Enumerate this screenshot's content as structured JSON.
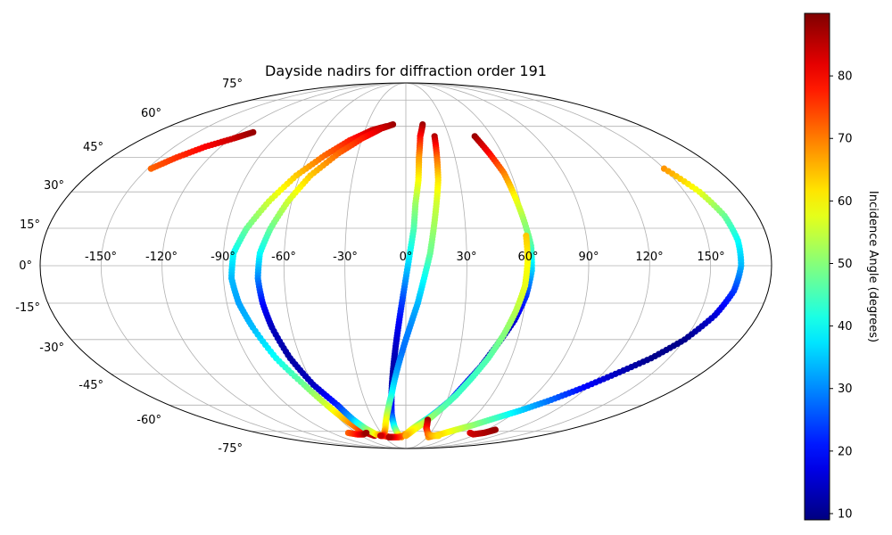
{
  "chart_data": {
    "type": "scatter",
    "projection": "mollweide",
    "title": "Dayside nadirs for diffraction order 191",
    "x_tick_labels": [
      "-150°",
      "-120°",
      "-90°",
      "-60°",
      "-30°",
      "0°",
      "30°",
      "60°",
      "90°",
      "120°",
      "150°"
    ],
    "y_tick_labels": [
      "75°",
      "60°",
      "45°",
      "30°",
      "15°",
      "0°",
      "-15°",
      "-30°",
      "-45°",
      "-60°",
      "-75°"
    ],
    "xlim": [
      -180,
      180
    ],
    "ylim": [
      -90,
      90
    ],
    "grid": true,
    "colorbar": {
      "label": "Incidence Angle (degrees)",
      "colormap": "jet",
      "range": [
        9,
        90
      ],
      "tick_labels": [
        "10",
        "20",
        "30",
        "40",
        "50",
        "60",
        "70",
        "80"
      ]
    },
    "series": [
      {
        "points": [
          [
            -148,
            40,
            72
          ],
          [
            -140,
            45,
            76
          ],
          [
            -130,
            50,
            80
          ],
          [
            -118,
            54,
            84
          ],
          [
            -110,
            57,
            88
          ]
        ]
      },
      {
        "points": [
          [
            -15,
            60,
            88
          ],
          [
            -25,
            58,
            84
          ],
          [
            -38,
            53,
            78
          ],
          [
            -50,
            46,
            72
          ],
          [
            -62,
            37,
            64
          ],
          [
            -72,
            26,
            56
          ],
          [
            -80,
            15,
            48
          ],
          [
            -85,
            5,
            40
          ],
          [
            -86,
            -5,
            34
          ],
          [
            -84,
            -15,
            32
          ],
          [
            -80,
            -25,
            34
          ],
          [
            -74,
            -38,
            40
          ],
          [
            -66,
            -50,
            48
          ],
          [
            -60,
            -60,
            56
          ],
          [
            -56,
            -67,
            64
          ],
          [
            -52,
            -73,
            72
          ],
          [
            -48,
            -76,
            80
          ],
          [
            -42,
            -78,
            86
          ]
        ]
      },
      {
        "points": [
          [
            -10,
            61,
            88
          ],
          [
            -18,
            59,
            84
          ],
          [
            -30,
            54,
            78
          ],
          [
            -42,
            47,
            72
          ],
          [
            -54,
            37,
            64
          ],
          [
            -62,
            26,
            56
          ],
          [
            -68,
            15,
            48
          ],
          [
            -72,
            5,
            40
          ],
          [
            -73,
            -5,
            30
          ],
          [
            -72,
            -15,
            20
          ],
          [
            -70,
            -25,
            14
          ],
          [
            -66,
            -38,
            12
          ],
          [
            -60,
            -50,
            14
          ],
          [
            -52,
            -60,
            22
          ],
          [
            -48,
            -68,
            34
          ],
          [
            -44,
            -73,
            48
          ],
          [
            -38,
            -77,
            60
          ],
          [
            -30,
            -78,
            72
          ],
          [
            -22,
            -79,
            82
          ]
        ]
      },
      {
        "points": [
          [
            13,
            61,
            88
          ],
          [
            10,
            55,
            80
          ],
          [
            8,
            45,
            68
          ],
          [
            7,
            35,
            60
          ],
          [
            5,
            25,
            52
          ],
          [
            4,
            15,
            46
          ],
          [
            2,
            5,
            40
          ],
          [
            0,
            -5,
            32
          ],
          [
            -2,
            -15,
            24
          ],
          [
            -4,
            -25,
            18
          ],
          [
            -6,
            -35,
            14
          ],
          [
            -8,
            -45,
            12
          ],
          [
            -10,
            -55,
            14
          ],
          [
            -12,
            -65,
            24
          ],
          [
            -12,
            -72,
            40
          ],
          [
            -10,
            -77,
            56
          ],
          [
            -6,
            -79,
            68
          ]
        ]
      },
      {
        "points": [
          [
            20,
            55,
            86
          ],
          [
            19,
            45,
            72
          ],
          [
            18,
            35,
            62
          ],
          [
            16,
            25,
            56
          ],
          [
            14,
            15,
            52
          ],
          [
            12,
            5,
            48
          ],
          [
            9,
            -5,
            40
          ],
          [
            6,
            -15,
            34
          ],
          [
            2,
            -25,
            30
          ],
          [
            -2,
            -35,
            28
          ],
          [
            -6,
            -45,
            32
          ],
          [
            -10,
            -55,
            40
          ],
          [
            -14,
            -62,
            50
          ],
          [
            -18,
            -68,
            58
          ],
          [
            -22,
            -73,
            62
          ],
          [
            -26,
            -76,
            68
          ],
          [
            -30,
            -78,
            76
          ],
          [
            -34,
            -78,
            84
          ]
        ]
      },
      {
        "points": [
          [
            48,
            55,
            88
          ],
          [
            52,
            47,
            80
          ],
          [
            56,
            38,
            70
          ],
          [
            58,
            28,
            60
          ],
          [
            60,
            18,
            52
          ],
          [
            62,
            8,
            46
          ],
          [
            62,
            -2,
            36
          ],
          [
            60,
            -12,
            24
          ],
          [
            56,
            -22,
            16
          ],
          [
            50,
            -32,
            12
          ],
          [
            44,
            -42,
            14
          ],
          [
            38,
            -50,
            18
          ],
          [
            32,
            -58,
            24
          ],
          [
            26,
            -63,
            32
          ],
          [
            20,
            -67,
            40
          ],
          [
            14,
            -70,
            48
          ],
          [
            8,
            -73,
            56
          ],
          [
            2,
            -76,
            62
          ],
          [
            -4,
            -78,
            68
          ],
          [
            -10,
            -79,
            74
          ],
          [
            -18,
            -79,
            80
          ],
          [
            -24,
            -79,
            86
          ]
        ]
      },
      {
        "points": [
          [
            60,
            12,
            64
          ],
          [
            60,
            2,
            60
          ],
          [
            59,
            -8,
            58
          ],
          [
            56,
            -18,
            54
          ],
          [
            52,
            -28,
            50
          ],
          [
            47,
            -38,
            46
          ],
          [
            41,
            -47,
            44
          ],
          [
            35,
            -55,
            44
          ],
          [
            29,
            -61,
            46
          ],
          [
            23,
            -66,
            50
          ],
          [
            17,
            -70,
            54
          ],
          [
            11,
            -73,
            58
          ],
          [
            5,
            -76,
            62
          ],
          [
            0,
            -78,
            66
          ]
        ]
      },
      {
        "points": [
          [
            150,
            40,
            68
          ],
          [
            158,
            30,
            58
          ],
          [
            163,
            20,
            48
          ],
          [
            165,
            10,
            40
          ],
          [
            165,
            0,
            34
          ],
          [
            163,
            -10,
            24
          ],
          [
            158,
            -20,
            16
          ],
          [
            150,
            -30,
            10
          ],
          [
            140,
            -38,
            10
          ],
          [
            128,
            -45,
            14
          ],
          [
            116,
            -52,
            20
          ],
          [
            104,
            -58,
            28
          ],
          [
            92,
            -63,
            36
          ],
          [
            80,
            -67,
            44
          ],
          [
            68,
            -71,
            50
          ],
          [
            56,
            -74,
            56
          ],
          [
            44,
            -77,
            62
          ],
          [
            32,
            -79,
            68
          ]
        ]
      },
      {
        "points": [
          [
            20,
            -68,
            88
          ],
          [
            22,
            -73,
            80
          ],
          [
            28,
            -77,
            72
          ],
          [
            36,
            -78,
            66
          ],
          [
            44,
            -78,
            62
          ]
        ]
      },
      {
        "points": [
          [
            78,
            -76,
            82
          ],
          [
            86,
            -77,
            84
          ],
          [
            95,
            -76,
            86
          ],
          [
            100,
            -74,
            88
          ]
        ]
      },
      {
        "points": [
          [
            -70,
            -76,
            72
          ],
          [
            -62,
            -77,
            78
          ],
          [
            -54,
            -77,
            84
          ],
          [
            -48,
            -76,
            88
          ]
        ]
      }
    ]
  }
}
